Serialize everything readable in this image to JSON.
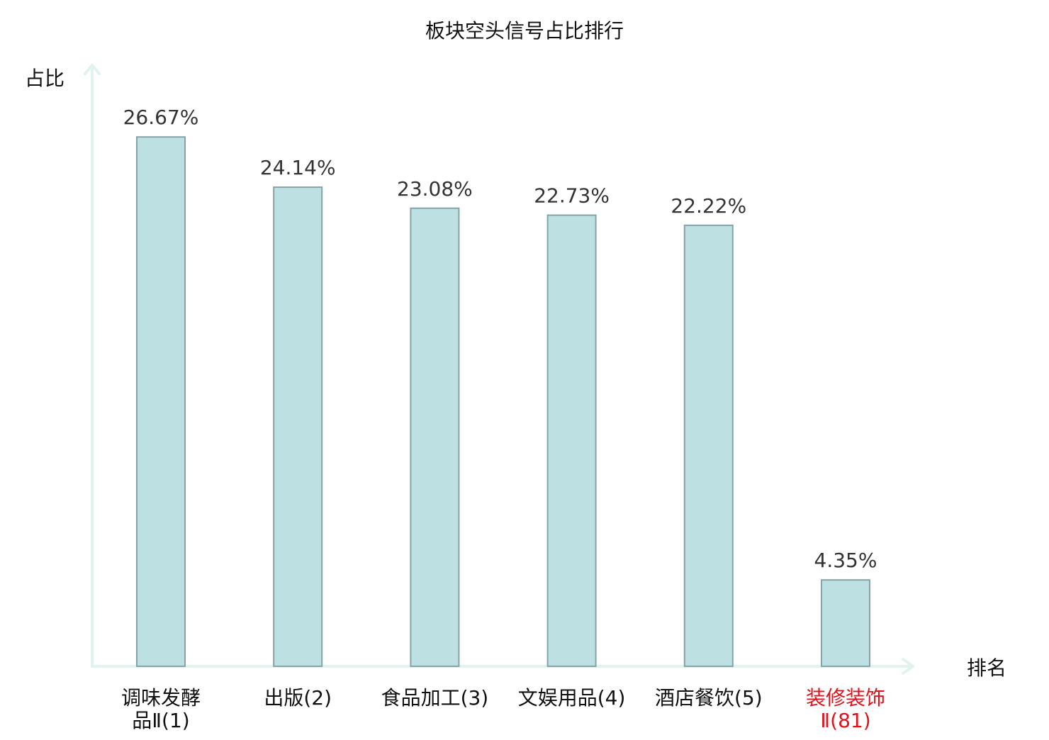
{
  "chart_data": {
    "type": "bar",
    "title": "板块空头信号占比排行",
    "ylabel": "占比",
    "xlabel": "排名",
    "ylim": [
      0,
      30
    ],
    "grid": false,
    "categories": [
      [
        "调味发酵",
        "品Ⅱ(1)"
      ],
      [
        "出版(2)"
      ],
      [
        "食品加工(3)"
      ],
      [
        "文娱用品(4)"
      ],
      [
        "酒店餐饮(5)"
      ],
      [
        "装修装饰",
        "Ⅱ(81)"
      ]
    ],
    "values": [
      26.67,
      24.14,
      23.08,
      22.73,
      22.22,
      4.35
    ],
    "value_labels": [
      "26.67%",
      "24.14%",
      "23.08%",
      "22.73%",
      "22.22%",
      "4.35%"
    ],
    "highlight_index": 5,
    "colors": {
      "bar_fill": "#bde0e3",
      "bar_stroke": "#86a3a6",
      "axis": "#e0f3ef",
      "label": "#111111",
      "value_label": "#333333",
      "highlight": "#e0131b"
    }
  }
}
